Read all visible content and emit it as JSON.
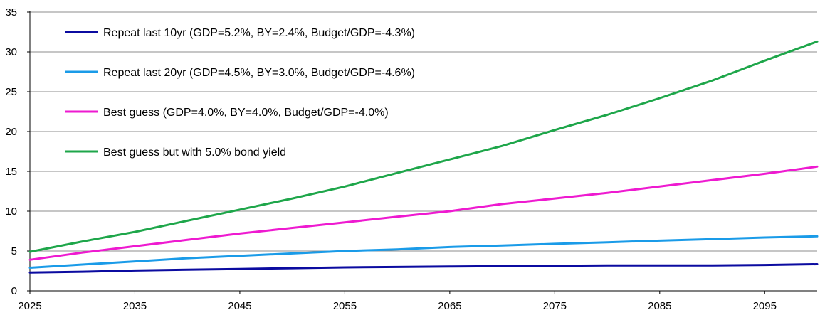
{
  "chart_data": {
    "type": "line",
    "title": "",
    "xlabel": "",
    "ylabel": "",
    "xlim": [
      2025,
      2100
    ],
    "ylim": [
      0,
      35
    ],
    "y_ticks": [
      0,
      5,
      10,
      15,
      20,
      25,
      30,
      35
    ],
    "y_tick_labels": [
      "0",
      "5",
      "10",
      "15",
      "20",
      "25",
      "30",
      "35"
    ],
    "x_ticks": [
      2025,
      2035,
      2045,
      2055,
      2065,
      2075,
      2085,
      2095
    ],
    "x_tick_labels": [
      "2025",
      "2035",
      "2045",
      "2055",
      "2065",
      "2075",
      "2085",
      "2095"
    ],
    "grid": "horizontal",
    "legend_position": "top-left",
    "x": [
      2025,
      2030,
      2035,
      2040,
      2045,
      2050,
      2055,
      2060,
      2065,
      2070,
      2075,
      2080,
      2085,
      2090,
      2095,
      2100
    ],
    "series": [
      {
        "name": "Repeat last 10yr (GDP=5.2%, BY=2.4%, Budget/GDP=-4.3%)",
        "color": "#0b0ba0",
        "values": [
          2.3,
          2.4,
          2.55,
          2.65,
          2.75,
          2.85,
          2.95,
          3.0,
          3.05,
          3.1,
          3.15,
          3.2,
          3.2,
          3.2,
          3.25,
          3.35
        ]
      },
      {
        "name": "Repeat last 20yr (GDP=4.5%, BY=3.0%, Budget/GDP=-4.6%)",
        "color": "#1a9be8",
        "values": [
          2.9,
          3.3,
          3.7,
          4.1,
          4.4,
          4.7,
          5.0,
          5.2,
          5.5,
          5.7,
          5.9,
          6.1,
          6.3,
          6.5,
          6.7,
          6.85
        ]
      },
      {
        "name": "Best guess (GDP=4.0%, BY=4.0%, Budget/GDP=-4.0%)",
        "color": "#ee1ad0",
        "values": [
          3.9,
          4.8,
          5.6,
          6.4,
          7.2,
          7.9,
          8.6,
          9.3,
          10.0,
          10.9,
          11.6,
          12.3,
          13.1,
          13.9,
          14.7,
          15.6
        ]
      },
      {
        "name": "Best guess but with 5.0% bond yield",
        "color": "#1ea64a",
        "values": [
          4.9,
          6.2,
          7.4,
          8.8,
          10.2,
          11.6,
          13.1,
          14.8,
          16.5,
          18.2,
          20.2,
          22.1,
          24.2,
          26.4,
          28.9,
          31.3
        ]
      }
    ]
  }
}
